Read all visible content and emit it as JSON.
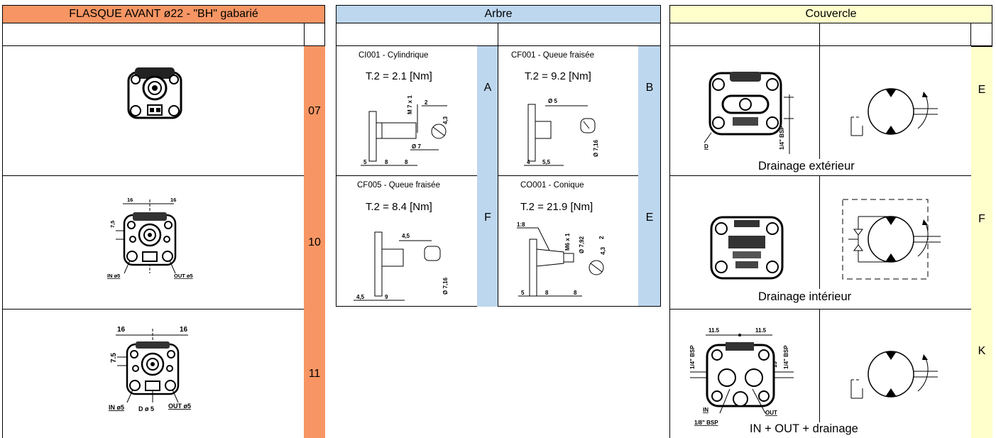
{
  "flasque": {
    "header": "FLASQUE AVANT ø22 - \"BH\" gabarié",
    "color": "#F79664",
    "rows": [
      {
        "code": "07"
      },
      {
        "code": "10",
        "dims": {
          "left": "16",
          "right": "16",
          "v": "7,5",
          "in": "IN ø5",
          "out": "OUT ø5"
        }
      },
      {
        "code": "11",
        "dims": {
          "left": "16",
          "right": "16",
          "v": "7.5",
          "in": "IN ø5",
          "mid": "D ø 5",
          "out": "OUT ø5"
        }
      }
    ]
  },
  "arbre": {
    "header": "Arbre",
    "color": "#BDD7EE",
    "cells": [
      {
        "name": "CI001 - Cylindrique",
        "torque": "T.2 = 2.1 [Nm]",
        "code": "A",
        "dims": {
          "thread": "M 7 x 1",
          "a": "2",
          "b": "4,3",
          "dia": "Ø 7",
          "l1": "5",
          "l2": "8",
          "l3": "8"
        }
      },
      {
        "name": "CF001 - Queue fraisée",
        "torque": "T.2 = 9.2 [Nm]",
        "code": "B",
        "dims": {
          "dia_top": "Ø 5",
          "dia": "Ø 7,16",
          "l1": "4",
          "l2": "5,5"
        }
      },
      {
        "name": "CF005 - Queue fraisée",
        "torque": "T.2 = 8.4 [Nm]",
        "code": "F",
        "dims": {
          "top": "4,5",
          "dia": "Ø 7,16",
          "l1": "4,5",
          "l2": "9"
        }
      },
      {
        "name": "CO001 - Conique",
        "torque": "T.2 = 21.9 [Nm]",
        "code": "E",
        "dims": {
          "taper": "1:8",
          "thread": "M6 x 1",
          "dia": "Ø 7,92",
          "a": "2",
          "b": "4,3",
          "l1": "5",
          "l2": "8",
          "l3": "8"
        }
      }
    ]
  },
  "couvercle": {
    "header": "Couvercle",
    "color": "#FFFFCC",
    "rows": [
      {
        "caption": "Drainage extérieur",
        "code": "E",
        "dims": {
          "d": "D",
          "bsp": "1/4\" BSP"
        }
      },
      {
        "caption": "Drainage intérieur",
        "code": "F"
      },
      {
        "caption": "IN + OUT + drainage",
        "code": "K",
        "dims": {
          "w1": "11.5",
          "w2": "11.5",
          "bsp_l": "1/4\" BSP",
          "bsp_r": "1/4\" BSP",
          "h": "13",
          "in": "IN",
          "bsp_b": "1/8\" BSP",
          "out": "OUT"
        }
      }
    ]
  }
}
